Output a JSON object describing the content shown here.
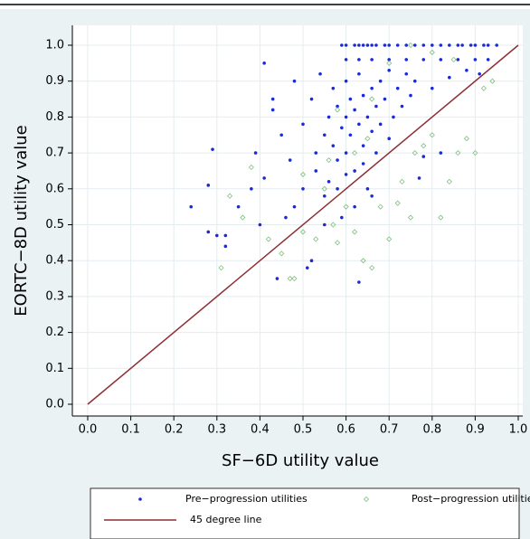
{
  "chart_data": {
    "type": "scatter",
    "x_label": "SF−6D utility value",
    "y_label": "EORTC−8D utility value",
    "xlim": [
      0,
      1
    ],
    "ylim": [
      0,
      1
    ],
    "xticks": [
      {
        "value": 0,
        "label": "0.0"
      },
      {
        "value": 0.1,
        "label": "0.1"
      },
      {
        "value": 0.2,
        "label": "0.2"
      },
      {
        "value": 0.3,
        "label": "0.3"
      },
      {
        "value": 0.4,
        "label": "0.4"
      },
      {
        "value": 0.5,
        "label": "0.5"
      },
      {
        "value": 0.6,
        "label": "0.6"
      },
      {
        "value": 0.7,
        "label": "0.7"
      },
      {
        "value": 0.8,
        "label": "0.8"
      },
      {
        "value": 0.9,
        "label": "0.9"
      },
      {
        "value": 1,
        "label": "1.0"
      }
    ],
    "yticks": [
      {
        "value": 0,
        "label": "0.0"
      },
      {
        "value": 0.1,
        "label": "0.1"
      },
      {
        "value": 0.2,
        "label": "0.2"
      },
      {
        "value": 0.3,
        "label": "0.3"
      },
      {
        "value": 0.4,
        "label": "0.4"
      },
      {
        "value": 0.5,
        "label": "0.5"
      },
      {
        "value": 0.6,
        "label": "0.6"
      },
      {
        "value": 0.7,
        "label": "0.7"
      },
      {
        "value": 0.8,
        "label": "0.8"
      },
      {
        "value": 0.9,
        "label": "0.9"
      },
      {
        "value": 1,
        "label": "1.0"
      }
    ],
    "grid": true,
    "legend": "bottom",
    "series": [
      {
        "name": "Pre−progression utilities",
        "color": "#1a2bd6",
        "marker": "dot",
        "x": [
          0.59,
          0.6,
          0.62,
          0.63,
          0.64,
          0.65,
          0.66,
          0.67,
          0.69,
          0.7,
          0.72,
          0.74,
          0.76,
          0.78,
          0.8,
          0.82,
          0.84,
          0.86,
          0.87,
          0.89,
          0.9,
          0.92,
          0.93,
          0.95,
          0.6,
          0.63,
          0.66,
          0.7,
          0.74,
          0.78,
          0.82,
          0.86,
          0.9,
          0.93,
          0.24,
          0.28,
          0.28,
          0.29,
          0.3,
          0.32,
          0.32,
          0.35,
          0.38,
          0.39,
          0.4,
          0.41,
          0.41,
          0.43,
          0.43,
          0.44,
          0.45,
          0.46,
          0.47,
          0.48,
          0.48,
          0.5,
          0.5,
          0.51,
          0.52,
          0.52,
          0.53,
          0.53,
          0.54,
          0.55,
          0.55,
          0.56,
          0.56,
          0.57,
          0.57,
          0.58,
          0.58,
          0.59,
          0.59,
          0.6,
          0.6,
          0.6,
          0.61,
          0.61,
          0.62,
          0.62,
          0.63,
          0.63,
          0.63,
          0.64,
          0.64,
          0.65,
          0.65,
          0.66,
          0.66,
          0.67,
          0.67,
          0.68,
          0.68,
          0.69,
          0.7,
          0.7,
          0.71,
          0.72,
          0.73,
          0.74,
          0.75,
          0.76,
          0.77,
          0.78,
          0.8,
          0.82,
          0.84,
          0.88,
          0.91,
          0.62,
          0.58,
          0.55,
          0.6,
          0.64,
          0.66
        ],
        "values": [
          1,
          1,
          1,
          1,
          1,
          1,
          1,
          1,
          1,
          1,
          1,
          1,
          1,
          1,
          1,
          1,
          1,
          1,
          1,
          1,
          1,
          1,
          1,
          1,
          0.96,
          0.96,
          0.96,
          0.96,
          0.96,
          0.96,
          0.96,
          0.96,
          0.96,
          0.96,
          0.55,
          0.48,
          0.61,
          0.71,
          0.47,
          0.47,
          0.44,
          0.55,
          0.6,
          0.7,
          0.5,
          0.95,
          0.63,
          0.85,
          0.82,
          0.35,
          0.75,
          0.52,
          0.68,
          0.9,
          0.55,
          0.78,
          0.6,
          0.38,
          0.4,
          0.85,
          0.7,
          0.65,
          0.92,
          0.75,
          0.58,
          0.8,
          0.62,
          0.88,
          0.72,
          0.83,
          0.68,
          0.77,
          0.52,
          0.9,
          0.8,
          0.7,
          0.85,
          0.75,
          0.65,
          0.82,
          0.78,
          0.34,
          0.92,
          0.72,
          0.86,
          0.8,
          0.6,
          0.76,
          0.88,
          0.7,
          0.83,
          0.9,
          0.78,
          0.85,
          0.74,
          0.93,
          0.8,
          0.88,
          0.83,
          0.92,
          0.86,
          0.9,
          0.63,
          0.69,
          0.88,
          0.7,
          0.91,
          0.93,
          0.92,
          0.55,
          0.6,
          0.5,
          0.64,
          0.67,
          0.58
        ]
      },
      {
        "name": "Post−progression utilities",
        "color": "#7fbf7f",
        "marker": "diamond",
        "x": [
          0.31,
          0.33,
          0.36,
          0.38,
          0.42,
          0.45,
          0.47,
          0.48,
          0.5,
          0.53,
          0.55,
          0.57,
          0.58,
          0.6,
          0.62,
          0.64,
          0.66,
          0.68,
          0.7,
          0.72,
          0.73,
          0.75,
          0.76,
          0.78,
          0.8,
          0.82,
          0.84,
          0.86,
          0.88,
          0.9,
          0.92,
          0.94,
          0.7,
          0.75,
          0.8,
          0.85,
          0.65,
          0.62,
          0.56,
          0.5,
          0.58,
          0.66
        ],
        "values": [
          0.38,
          0.58,
          0.52,
          0.66,
          0.46,
          0.42,
          0.35,
          0.35,
          0.48,
          0.46,
          0.6,
          0.5,
          0.45,
          0.55,
          0.48,
          0.4,
          0.38,
          0.55,
          0.46,
          0.56,
          0.62,
          0.52,
          0.7,
          0.72,
          0.75,
          0.52,
          0.62,
          0.7,
          0.74,
          0.7,
          0.88,
          0.9,
          0.95,
          1,
          0.98,
          0.96,
          0.74,
          0.7,
          0.68,
          0.64,
          0.82,
          0.85
        ]
      },
      {
        "name": "45 degree line",
        "color": "#8e2f35",
        "marker": "line",
        "x": [
          0,
          1
        ],
        "values": [
          0,
          1
        ]
      }
    ]
  }
}
